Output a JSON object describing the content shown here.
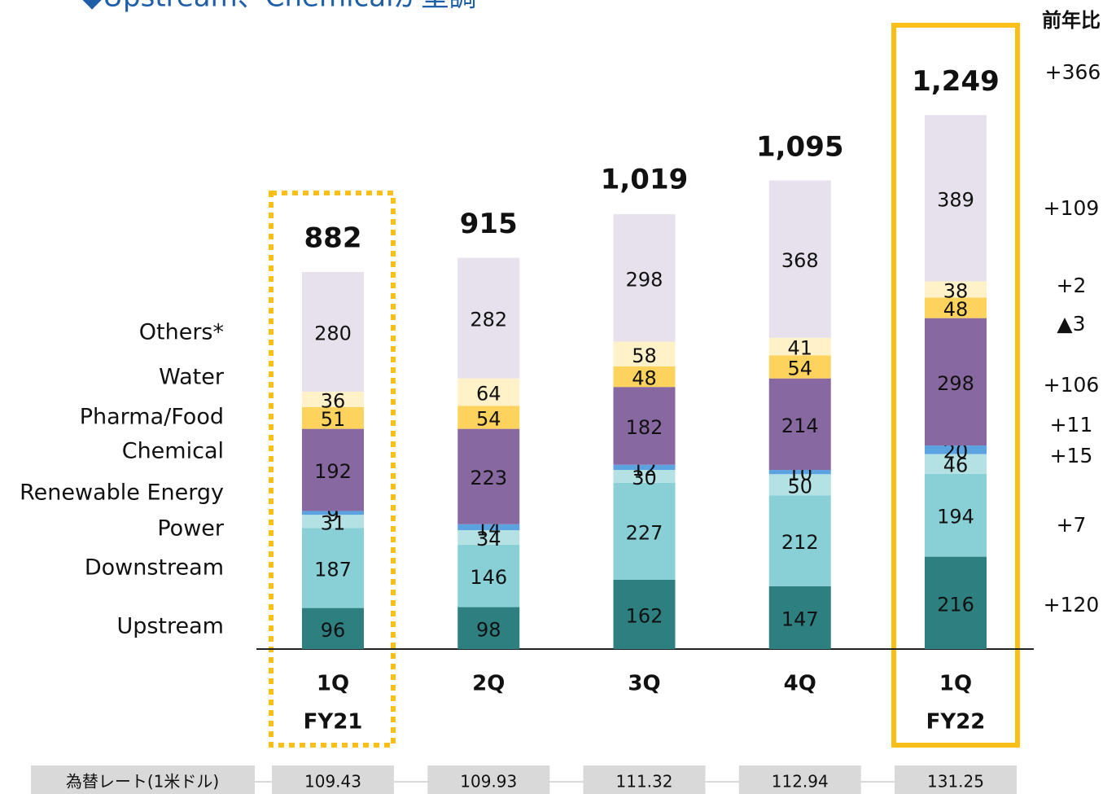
{
  "chart_data": {
    "type": "stacked_bar",
    "title": "◆Upstream、Chemicalが堅調",
    "categories": [
      "1Q",
      "2Q",
      "3Q",
      "4Q",
      "1Q"
    ],
    "fiscal_years": [
      "FY21",
      null,
      null,
      null,
      "FY22"
    ],
    "series": [
      {
        "name": "Upstream",
        "color": "#2e7f80",
        "values": [
          96,
          98,
          162,
          147,
          216
        ]
      },
      {
        "name": "Downstream",
        "color": "#88cfd6",
        "values": [
          187,
          146,
          227,
          212,
          194
        ]
      },
      {
        "name": "Power",
        "color": "#b4e1e4",
        "values": [
          31,
          34,
          30,
          50,
          46
        ]
      },
      {
        "name": "Renewable Energy",
        "color": "#5ba3e0",
        "values": [
          9,
          14,
          12,
          10,
          20
        ]
      },
      {
        "name": "Chemical",
        "color": "#8868a0",
        "values": [
          192,
          223,
          182,
          214,
          298
        ]
      },
      {
        "name": "Pharma/Food",
        "color": "#fdd35e",
        "values": [
          51,
          54,
          48,
          54,
          48
        ]
      },
      {
        "name": "Water",
        "color": "#fff2c8",
        "values": [
          36,
          64,
          58,
          41,
          38
        ]
      },
      {
        "name": "Others*",
        "color": "#e6e1ec",
        "values": [
          280,
          282,
          298,
          368,
          389
        ]
      }
    ],
    "totals": {
      "values": [
        882,
        915,
        1019,
        1095,
        1249
      ],
      "value_labels": [
        "882",
        "915",
        "1,019",
        "1,095",
        "1,249"
      ]
    },
    "yoy": {
      "title": "前年比",
      "total": {
        "value": 366,
        "label": "+366"
      },
      "series": [
        {
          "value": 120,
          "label": "+120"
        },
        {
          "value": 7,
          "label": "+7"
        },
        {
          "value": 15,
          "label": "+15"
        },
        {
          "value": 11,
          "label": "+11"
        },
        {
          "value": 106,
          "label": "+106"
        },
        {
          "value": -3,
          "label": "▲3"
        },
        {
          "value": 2,
          "label": "+2"
        },
        {
          "value": 109,
          "label": "+109"
        }
      ]
    },
    "fx": {
      "label": "為替レート(1米ドル)",
      "values": [
        "109.43",
        "109.93",
        "111.32",
        "112.94",
        "131.25"
      ]
    }
  }
}
